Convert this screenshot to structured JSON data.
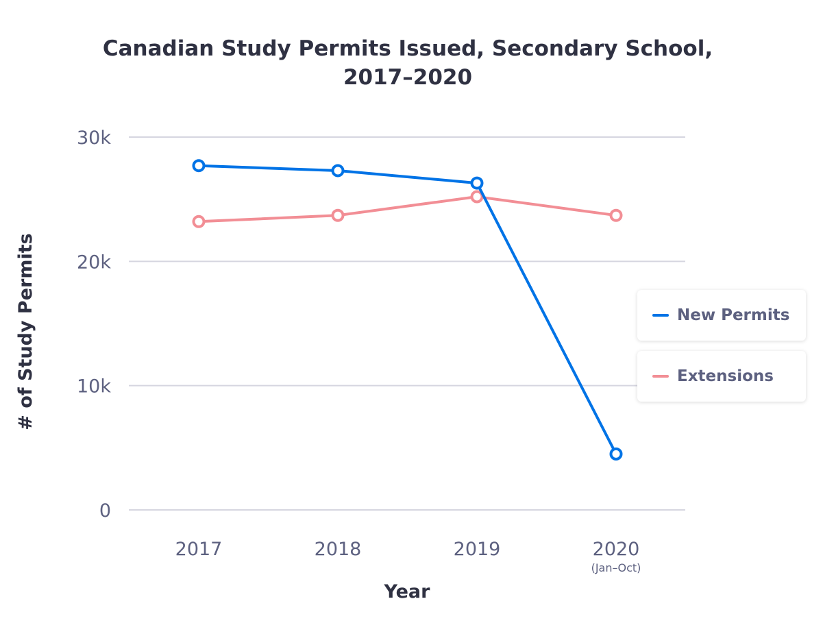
{
  "chart_data": {
    "type": "line",
    "title": "Canadian Study Permits Issued, Secondary School, 2017–2020",
    "title_lines": [
      "Canadian Study Permits Issued, Secondary School,",
      "2017–2020"
    ],
    "xlabel": "Year",
    "ylabel": "# of Study Permits",
    "categories": [
      "2017",
      "2018",
      "2019",
      "2020"
    ],
    "category_sublabels": [
      "",
      "",
      "",
      "(Jan–Oct)"
    ],
    "yticks": [
      0,
      10000,
      20000,
      30000
    ],
    "ytick_labels": [
      "0",
      "10k",
      "20k",
      "30k"
    ],
    "ylim": [
      0,
      30000
    ],
    "grid": true,
    "legend_placement": "right",
    "series": [
      {
        "name": "New Permits",
        "color": "#0073e6",
        "values": [
          27700,
          27300,
          26300,
          4500
        ]
      },
      {
        "name": "Extensions",
        "color": "#f28e95",
        "values": [
          23200,
          23700,
          25200,
          23700
        ]
      }
    ]
  }
}
